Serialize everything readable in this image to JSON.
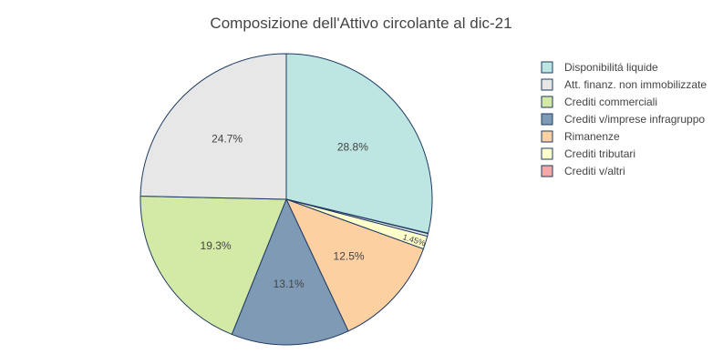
{
  "chart_data": {
    "type": "pie",
    "title": "Composizione dell'Attivo circolante al dic-21",
    "legend_position": "right",
    "slice_border_color": "#1f3b63",
    "slices": [
      {
        "label": "Disponibilitá liquide",
        "value": 28.8,
        "text": "28.8%",
        "color": "#bde5e1"
      },
      {
        "label": "Crediti v/altri",
        "value": 0.05,
        "text": "",
        "color": "#f4a8a8"
      },
      {
        "label": "Crediti tributari",
        "value": 0.0,
        "text": "",
        "color": "#ffffcc"
      },
      {
        "label": "Att. finanz. non immobilizzate",
        "value": 0.3,
        "text": "",
        "color": "#e7e7e7"
      },
      {
        "label": "Crediti tributari",
        "value": 1.45,
        "text": "1.45%",
        "color": "#ffffcc"
      },
      {
        "label": "Rimanenze",
        "value": 12.5,
        "text": "12.5%",
        "color": "#fdd0a2"
      },
      {
        "label": "Crediti v/imprese infragruppo",
        "value": 13.1,
        "text": "13.1%",
        "color": "#7f9ab5"
      },
      {
        "label": "Crediti commerciali",
        "value": 19.3,
        "text": "19.3%",
        "color": "#d3e9a6"
      },
      {
        "label": "Att. finanz. non immobilizzate",
        "value": 24.7,
        "text": "24.7%",
        "color": "#e7e7e7"
      }
    ],
    "legend": [
      {
        "label": "Disponibilitá liquide",
        "color": "#bde5e1"
      },
      {
        "label": "Att. finanz. non immobilizzate",
        "color": "#e7e7e7"
      },
      {
        "label": "Crediti commerciali",
        "color": "#d3e9a6"
      },
      {
        "label": "Crediti v/imprese infragruppo",
        "color": "#7f9ab5"
      },
      {
        "label": "Rimanenze",
        "color": "#fdd0a2"
      },
      {
        "label": "Crediti tributari",
        "color": "#ffffcc"
      },
      {
        "label": "Crediti v/altri",
        "color": "#f4a8a8"
      }
    ]
  }
}
